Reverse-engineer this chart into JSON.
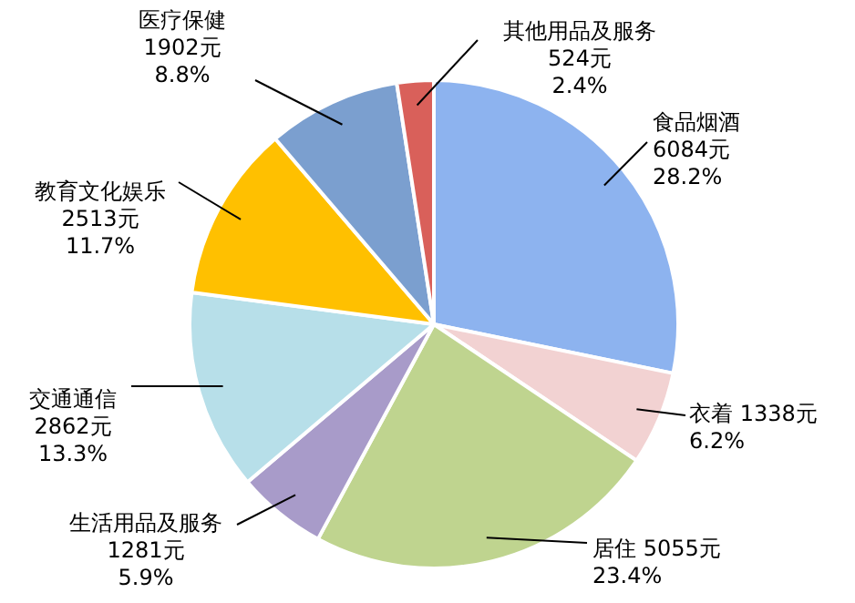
{
  "chart_data": {
    "type": "pie",
    "categories": [
      "食品烟酒",
      "衣着",
      "居住",
      "生活用品及服务",
      "交通通信",
      "教育文化娱乐",
      "医疗保健",
      "其他用品及服务"
    ],
    "values": [
      6084,
      1338,
      5055,
      1281,
      2862,
      2513,
      1902,
      524
    ],
    "colors": [
      "#8db3ef",
      "#f2d2d2",
      "#bfd48f",
      "#a89bc9",
      "#b7dfe9",
      "#ffc000",
      "#7b9fcf",
      "#d9605a"
    ],
    "value_labels": [
      "6084元\n28.2%",
      "1338元\n6.2%",
      "5055元\n23.4%",
      "1281元\n5.9%",
      "2862元\n13.3%",
      "2513元\n11.7%",
      "1902元\n8.8%",
      "524元\n2.4%"
    ],
    "legend": false
  }
}
